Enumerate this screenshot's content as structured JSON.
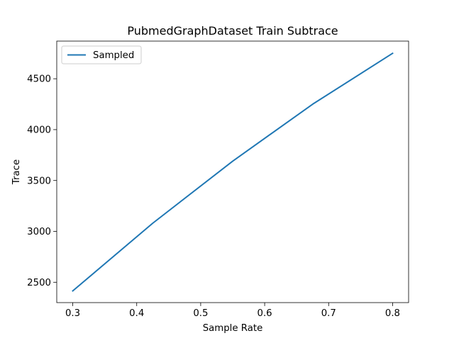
{
  "chart_data": {
    "type": "line",
    "title": "PubmedGraphDataset Train Subtrace",
    "xlabel": "Sample Rate",
    "ylabel": "Trace",
    "xlim": [
      0.275,
      0.825
    ],
    "ylim": [
      2300,
      4870
    ],
    "xticks": [
      0.3,
      0.4,
      0.5,
      0.6,
      0.7,
      0.8
    ],
    "xtick_labels": [
      "0.3",
      "0.4",
      "0.5",
      "0.6",
      "0.7",
      "0.8"
    ],
    "yticks": [
      2500,
      3000,
      3500,
      4000,
      4500
    ],
    "ytick_labels": [
      "2500",
      "3000",
      "3500",
      "4000",
      "4500"
    ],
    "grid": false,
    "legend": {
      "placement": "top-left",
      "entries": [
        "Sampled"
      ]
    },
    "series": [
      {
        "name": "Sampled",
        "color": "#1f77b4",
        "x": [
          0.3,
          0.425,
          0.55,
          0.675,
          0.8
        ],
        "y": [
          2415,
          3080,
          3690,
          4250,
          4750
        ]
      }
    ]
  }
}
